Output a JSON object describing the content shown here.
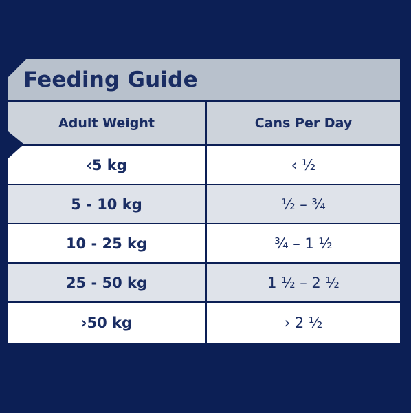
{
  "title": "Feeding Guide",
  "columns": {
    "weight": "Adult Weight",
    "cans": "Cans Per Day"
  },
  "rows": [
    {
      "weight": "‹5 kg",
      "cans": "‹ ½"
    },
    {
      "weight": "5 - 10 kg",
      "cans": "½ – ¾"
    },
    {
      "weight": "10 - 25 kg",
      "cans": "¾ – 1 ½"
    },
    {
      "weight": "25 - 50 kg",
      "cans": "1 ½ – 2 ½"
    },
    {
      "weight": "›50 kg",
      "cans": "› 2 ½"
    }
  ]
}
